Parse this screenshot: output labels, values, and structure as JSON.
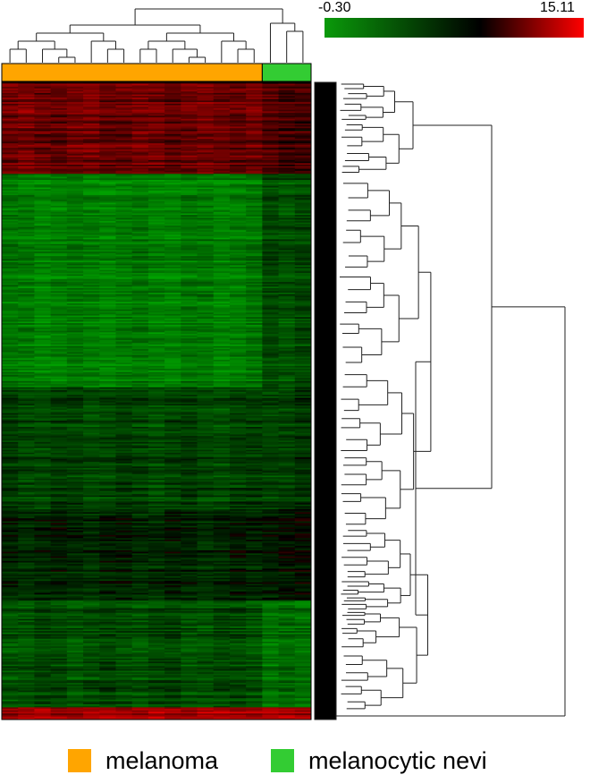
{
  "chart_data": {
    "type": "heatmap",
    "title": "",
    "color_scale": {
      "min": -0.3,
      "max": 15.11,
      "min_label": "-0.30",
      "max_label": "15.11",
      "colors": [
        "#0a9a0a",
        "#000000",
        "#ff0000"
      ]
    },
    "groups": [
      {
        "name": "melanoma",
        "color": "#ffa500",
        "sample_count": 16
      },
      {
        "name": "melanocytic nevi",
        "color": "#33cc33",
        "sample_count": 3
      }
    ],
    "row_blocks": [
      {
        "rows": 60,
        "level": 0.45
      },
      {
        "rows": 140,
        "level": -0.75
      },
      {
        "rows": 80,
        "level": -0.35
      },
      {
        "rows": 60,
        "level": -0.15
      },
      {
        "rows": 70,
        "level": -0.4
      },
      {
        "rows": 8,
        "level": 0.7
      }
    ],
    "nevi_block_shift": [
      -0.15,
      0.35,
      0.05,
      0.1,
      -0.25,
      0.0
    ]
  },
  "legend": {
    "melanoma": "melanoma",
    "nevi": "melanocytic nevi"
  }
}
